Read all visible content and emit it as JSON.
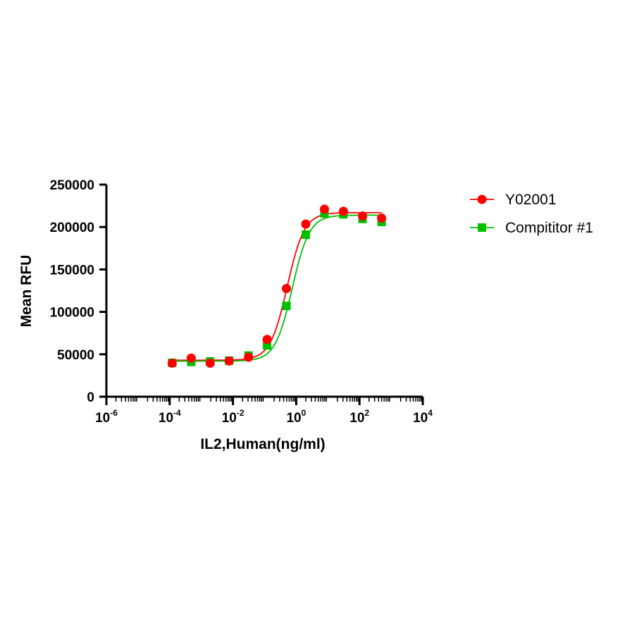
{
  "chart_data": {
    "type": "scatter",
    "xlabel": "IL2,Human(ng/ml)",
    "ylabel": "Mean RFU",
    "x_scale": "log10",
    "xlim": [
      1e-06,
      10000
    ],
    "ylim": [
      0,
      250000
    ],
    "x_ticks": [
      {
        "base": "10",
        "exp": "-6"
      },
      {
        "base": "10",
        "exp": "-4"
      },
      {
        "base": "10",
        "exp": "-2"
      },
      {
        "base": "10",
        "exp": "0"
      },
      {
        "base": "10",
        "exp": "2"
      },
      {
        "base": "10",
        "exp": "4"
      }
    ],
    "y_ticks": [
      "0",
      "50000",
      "100000",
      "150000",
      "200000",
      "250000"
    ],
    "legend_position": "right",
    "series": [
      {
        "name": "Y02001",
        "color": "#ff0000",
        "marker": "circle",
        "x": [
          0.00012,
          0.00048,
          0.0019,
          0.0076,
          0.031,
          0.12,
          0.49,
          2.0,
          7.8,
          31,
          125,
          500
        ],
        "y": [
          39500,
          45500,
          39500,
          42000,
          46500,
          67500,
          127500,
          203500,
          221000,
          218500,
          213000,
          210500
        ],
        "fit": {
          "bottom": 43000,
          "top": 217000,
          "ec50": 0.52,
          "hill": 1.6
        }
      },
      {
        "name": "Compititor #1",
        "color": "#00c000",
        "marker": "square",
        "x": [
          0.00012,
          0.00048,
          0.0019,
          0.0076,
          0.031,
          0.12,
          0.49,
          2.0,
          7.8,
          31,
          125,
          500
        ],
        "y": [
          40000,
          41000,
          41500,
          42500,
          48500,
          60500,
          107000,
          191000,
          216000,
          215000,
          209500,
          206000
        ],
        "fit": {
          "bottom": 42000,
          "top": 214000,
          "ec50": 0.75,
          "hill": 1.6
        }
      }
    ]
  }
}
